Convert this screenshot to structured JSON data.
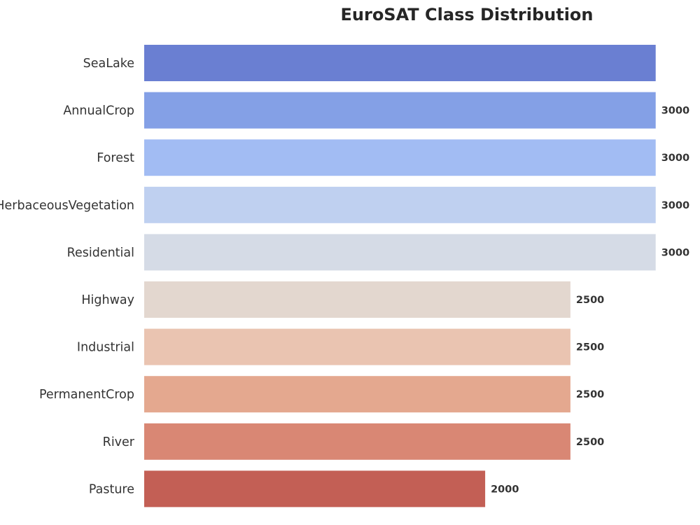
{
  "chart_data": {
    "type": "bar",
    "orientation": "horizontal",
    "title": "EuroSAT Class Distribution",
    "xlabel": "",
    "ylabel": "",
    "categories": [
      "SeaLake",
      "AnnualCrop",
      "Forest",
      "HerbaceousVegetation",
      "Residential",
      "Highway",
      "Industrial",
      "PermanentCrop",
      "River",
      "Pasture"
    ],
    "values": [
      3000,
      3000,
      3000,
      3000,
      3000,
      2500,
      2500,
      2500,
      2500,
      2000
    ],
    "value_labels": [
      "",
      "3000",
      "3000",
      "3000",
      "3000",
      "2500",
      "2500",
      "2500",
      "2500",
      "2000"
    ],
    "xlim": [
      0,
      3260
    ],
    "grid": false,
    "legend": "none",
    "colors": [
      "#6a7fd2",
      "#84a0e6",
      "#a2bcf3",
      "#bfd0f0",
      "#d5dbe6",
      "#e3d7cf",
      "#eac4b1",
      "#e4a88f",
      "#d98774",
      "#c35f55"
    ]
  }
}
